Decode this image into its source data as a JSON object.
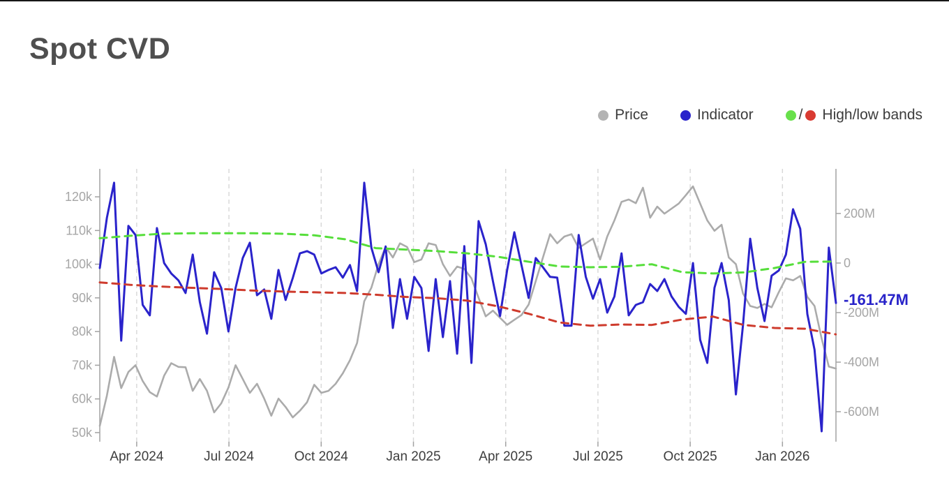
{
  "page": {
    "title": "Spot CVD"
  },
  "legend": {
    "price_label": "Price",
    "indicator_label": "Indicator",
    "bands_separator": "/",
    "bands_label": "High/low bands"
  },
  "colors": {
    "title_text": "#4f4f4f",
    "legend_text": "#3c3c3c",
    "price": "#ababab",
    "price_dot": "#b3b3b3",
    "indicator": "#2a23cb",
    "indicator_dot": "#2a23cb",
    "high_band": "#56de3b",
    "high_band_dot": "#68e04b",
    "low_band": "#ce3b2d",
    "low_band_dot": "#d93b32",
    "grid": "#d7d7d7",
    "axis": "#a2a2a2",
    "y_tick_text": "#a6a6a6",
    "x_tick_text": "#3d3d3d",
    "current_value": "#2823c9"
  },
  "chart_data": {
    "type": "line",
    "title": "Spot CVD",
    "grid": "vertical-dashed",
    "legend_position": "top-right",
    "current_value_label": "-161.47M",
    "x_axis": {
      "min": 2024.15,
      "max": 2026.145,
      "ticks": [
        2024.25,
        2024.5,
        2024.75,
        2025.0,
        2025.25,
        2025.5,
        2025.75,
        2026.0
      ],
      "tick_labels": [
        "Apr 2024",
        "Jul 2024",
        "Oct 2024",
        "Jan 2025",
        "Apr 2025",
        "Jul 2025",
        "Oct 2025",
        "Jan 2026"
      ]
    },
    "price_axis": {
      "unit": "USD thousands",
      "min": 47.3,
      "max": 128.3,
      "ticks": [
        50,
        60,
        70,
        80,
        90,
        100,
        110,
        120
      ],
      "tick_labels": [
        "50k",
        "60k",
        "70k",
        "80k",
        "90k",
        "100k",
        "110k",
        "120k"
      ]
    },
    "indicator_axis": {
      "unit": "USD millions",
      "min": -721,
      "max": 380,
      "ticks": [
        200,
        0,
        -200,
        -400,
        -600
      ],
      "tick_labels": [
        "200M",
        "0",
        "-200M",
        "-400M",
        "-600M"
      ]
    },
    "series": [
      {
        "key": "price",
        "name": "Price",
        "axis": "price_axis",
        "color_key": "price",
        "dashed": false,
        "width": 2.6,
        "t0": 2024.15,
        "dt": 0.019369,
        "values": [
          52,
          61,
          72.5,
          63.2,
          68,
          70,
          65.3,
          62,
          60.7,
          66.9,
          70.6,
          69.5,
          69.4,
          62.4,
          65.9,
          62.4,
          56,
          58.7,
          63.4,
          70,
          65.9,
          61.8,
          64.5,
          60.1,
          55,
          60.1,
          57.6,
          54.5,
          56.5,
          59,
          64.2,
          61.8,
          62.4,
          64.5,
          67.6,
          71.5,
          76.6,
          89,
          93,
          100,
          105.1,
          102,
          106.2,
          105.1,
          100.6,
          101.4,
          106.2,
          105.7,
          100,
          96.5,
          99.3,
          98.6,
          95.8,
          90,
          84.5,
          86.2,
          84.1,
          82,
          83.5,
          84.9,
          88,
          95,
          102,
          108.9,
          106.2,
          108.2,
          108.9,
          104.8,
          106.2,
          107.6,
          101.4,
          108.2,
          113,
          118.5,
          119.2,
          118.1,
          122.7,
          113.8,
          117.1,
          115,
          116.5,
          118,
          120.5,
          123.1,
          118,
          113,
          109.9,
          111.7,
          102,
          100,
          91.3,
          87.6,
          87,
          88.2,
          87.2,
          91.7,
          95.8,
          95.2,
          96.5,
          90.3,
          87.6,
          77.9,
          69.6,
          69
        ]
      },
      {
        "key": "indicator",
        "name": "Indicator",
        "axis": "indicator_axis",
        "color_key": "indicator",
        "dashed": false,
        "width": 3,
        "t0": 2024.15,
        "dt": 0.019369,
        "values": [
          -20,
          183,
          324,
          -313,
          150,
          113,
          -169,
          -211,
          141,
          0,
          -42,
          -70,
          -121,
          34,
          -158,
          -285,
          -37,
          -101,
          -276,
          -101,
          20,
          82,
          -130,
          -107,
          -225,
          -28,
          -149,
          -60,
          39,
          48,
          34,
          -42,
          -28,
          -17,
          -59,
          -8,
          -113,
          324,
          62,
          -37,
          67,
          -262,
          -65,
          -225,
          -56,
          -101,
          -355,
          -65,
          -299,
          -73,
          -366,
          68,
          -403,
          169,
          76,
          -73,
          -214,
          -28,
          124,
          -8,
          -141,
          20,
          -17,
          -56,
          -59,
          -253,
          -253,
          113,
          -56,
          -144,
          -65,
          -200,
          -135,
          39,
          -211,
          -169,
          -158,
          -85,
          -113,
          -65,
          -135,
          -177,
          -205,
          0,
          -310,
          -403,
          -100,
          0,
          -150,
          -530,
          -250,
          98,
          -100,
          -234,
          -51,
          -30,
          34,
          217,
          138,
          -206,
          -350,
          -679,
          62,
          -161.47
        ]
      },
      {
        "key": "high_band",
        "name": "High band",
        "axis": "indicator_axis",
        "color_key": "high_band",
        "dashed": true,
        "width": 3,
        "t0": 2024.15,
        "dt": 0.0831,
        "values": [
          100,
          110,
          118,
          120,
          120,
          120,
          118,
          112,
          96,
          60,
          54,
          48,
          39,
          25,
          5,
          -14,
          -17,
          -15,
          -5,
          -37,
          -42,
          -38,
          -20,
          5,
          6
        ]
      },
      {
        "key": "low_band",
        "name": "Low band",
        "axis": "indicator_axis",
        "color_key": "low_band",
        "dashed": true,
        "width": 3,
        "t0": 2024.15,
        "dt": 0.0831,
        "values": [
          -78,
          -88,
          -95,
          -100,
          -105,
          -111,
          -115,
          -118,
          -121,
          -128,
          -137,
          -142,
          -152,
          -175,
          -205,
          -240,
          -253,
          -248,
          -250,
          -228,
          -216,
          -250,
          -262,
          -265,
          -288
        ]
      }
    ]
  }
}
